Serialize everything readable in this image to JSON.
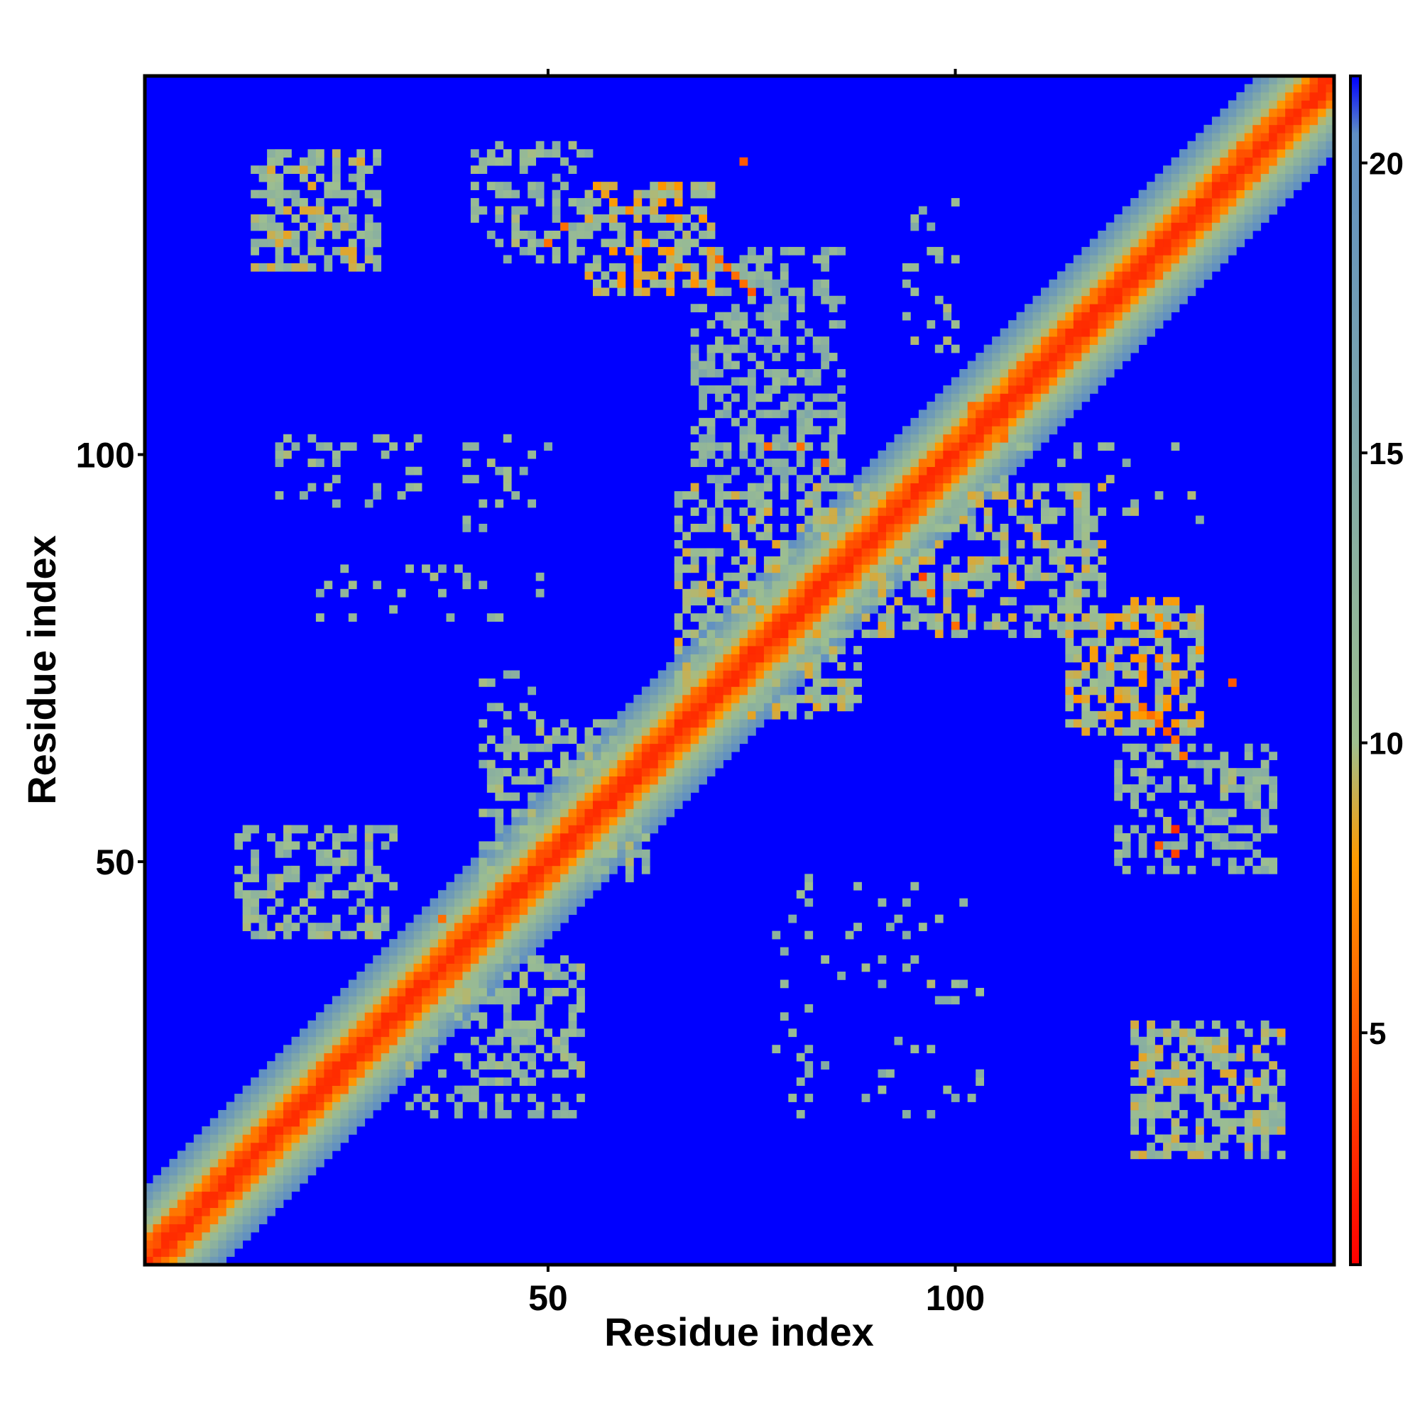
{
  "chart_data": {
    "type": "heatmap",
    "title": "",
    "xlabel": "Residue index",
    "ylabel": "Residue index",
    "x_ticks": [
      50,
      100
    ],
    "y_ticks": [
      50,
      100
    ],
    "xlim": [
      0.5,
      146.5
    ],
    "ylim": [
      0.5,
      146.5
    ],
    "n_residues": 146,
    "colorbar": {
      "ticks": [
        5,
        10,
        15,
        20
      ],
      "range": [
        1,
        21.5
      ],
      "colors": [
        "#ff0000",
        "#ff9a00",
        "#9ebf8f",
        "#5f8fc4",
        "#0000ff"
      ],
      "stops": [
        1,
        8,
        10,
        20.5,
        21.5
      ]
    },
    "diagonal_profile": [
      {
        "offset": 0,
        "value": 3.0
      },
      {
        "offset": 1,
        "value": 3.8
      },
      {
        "offset": 2,
        "value": 5.5
      },
      {
        "offset": 3,
        "value": 7.0
      },
      {
        "offset": 4,
        "value": 9.5
      },
      {
        "offset": 5,
        "value": 11.0
      },
      {
        "offset": 6,
        "value": 13.0
      },
      {
        "offset": 7,
        "value": 15.5
      },
      {
        "offset": 8,
        "value": 18.0
      },
      {
        "offset": 9,
        "value": 20.0
      }
    ],
    "contact_clusters": [
      {
        "x": [
          14,
          29
        ],
        "y": [
          123,
          137
        ],
        "density": 0.55,
        "value": 11
      },
      {
        "x": [
          41,
          55
        ],
        "y": [
          124,
          138
        ],
        "density": 0.4,
        "value": 12
      },
      {
        "x": [
          55,
          70
        ],
        "y": [
          120,
          133
        ],
        "density": 0.6,
        "value": 10
      },
      {
        "x": [
          68,
          86
        ],
        "y": [
          88,
          125
        ],
        "density": 0.45,
        "value": 13
      },
      {
        "x": [
          66,
          88
        ],
        "y": [
          68,
          96
        ],
        "density": 0.5,
        "value": 11
      },
      {
        "x": [
          86,
          118
        ],
        "y": [
          78,
          96
        ],
        "density": 0.5,
        "value": 11
      },
      {
        "x": [
          114,
          130
        ],
        "y": [
          66,
          82
        ],
        "density": 0.6,
        "value": 10
      },
      {
        "x": [
          120,
          139
        ],
        "y": [
          49,
          64
        ],
        "density": 0.4,
        "value": 12
      },
      {
        "x": [
          12,
          31
        ],
        "y": [
          41,
          54
        ],
        "density": 0.45,
        "value": 12
      },
      {
        "x": [
          33,
          54
        ],
        "y": [
          19,
          38
        ],
        "density": 0.45,
        "value": 12
      },
      {
        "x": [
          42,
          62
        ],
        "y": [
          48,
          67
        ],
        "density": 0.45,
        "value": 12
      },
      {
        "x": [
          122,
          140
        ],
        "y": [
          14,
          30
        ],
        "density": 0.55,
        "value": 11
      },
      {
        "x": [
          17,
          34
        ],
        "y": [
          94,
          102
        ],
        "density": 0.2,
        "value": 12
      },
      {
        "x": [
          40,
          50
        ],
        "y": [
          90,
          102
        ],
        "density": 0.15,
        "value": 12
      },
      {
        "x": [
          78,
          103
        ],
        "y": [
          19,
          49
        ],
        "density": 0.08,
        "value": 12
      },
      {
        "x": [
          94,
          100
        ],
        "y": [
          110,
          132
        ],
        "density": 0.15,
        "value": 12
      },
      {
        "x": [
          100,
          130
        ],
        "y": [
          92,
          101
        ],
        "density": 0.12,
        "value": 12
      },
      {
        "x": [
          20,
          50
        ],
        "y": [
          80,
          86
        ],
        "density": 0.08,
        "value": 12
      },
      {
        "x": [
          42,
          48
        ],
        "y": [
          68,
          73
        ],
        "density": 0.3,
        "value": 12
      }
    ],
    "hotspots": [
      {
        "x": 71,
        "y": 124,
        "value": 6
      },
      {
        "x": 72,
        "y": 123,
        "value": 6
      },
      {
        "x": 73,
        "y": 122,
        "value": 6
      },
      {
        "x": 74,
        "y": 121,
        "value": 6
      },
      {
        "x": 75,
        "y": 120,
        "value": 5
      },
      {
        "x": 66,
        "y": 123,
        "value": 7
      },
      {
        "x": 52,
        "y": 128,
        "value": 6
      },
      {
        "x": 50,
        "y": 126,
        "value": 6
      },
      {
        "x": 123,
        "y": 69,
        "value": 6
      },
      {
        "x": 124,
        "y": 68,
        "value": 6
      },
      {
        "x": 125,
        "y": 67,
        "value": 6
      },
      {
        "x": 126,
        "y": 66,
        "value": 5
      },
      {
        "x": 127,
        "y": 65,
        "value": 6
      },
      {
        "x": 128,
        "y": 63,
        "value": 6
      },
      {
        "x": 125,
        "y": 52,
        "value": 5
      },
      {
        "x": 127,
        "y": 54,
        "value": 3
      },
      {
        "x": 127,
        "y": 51,
        "value": 4
      },
      {
        "x": 134,
        "y": 72,
        "value": 5
      },
      {
        "x": 96,
        "y": 85,
        "value": 4
      },
      {
        "x": 97,
        "y": 83,
        "value": 6
      },
      {
        "x": 90,
        "y": 91,
        "value": 7
      },
      {
        "x": 84,
        "y": 99,
        "value": 5
      },
      {
        "x": 81,
        "y": 101,
        "value": 6
      },
      {
        "x": 77,
        "y": 101,
        "value": 6
      },
      {
        "x": 102,
        "y": 106,
        "value": 6
      },
      {
        "x": 106,
        "y": 102,
        "value": 6
      },
      {
        "x": 100,
        "y": 79,
        "value": 6
      },
      {
        "x": 74,
        "y": 136,
        "value": 5
      },
      {
        "x": 37,
        "y": 43,
        "value": 6
      }
    ]
  }
}
